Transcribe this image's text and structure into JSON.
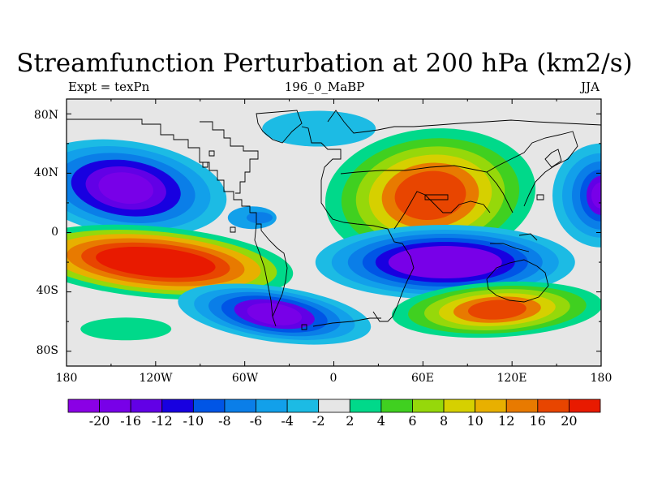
{
  "title": "Streamfunction Perturbation at 200 hPa (km2/s)",
  "left_label": "Expt = texPn",
  "center_label": "196_0_MaBP",
  "right_label": "JJA",
  "chart_data": {
    "type": "heatmap",
    "variable": "Streamfunction Perturbation at 200 hPa (km2/s)",
    "x_ticks": [
      "180",
      "120W",
      "60W",
      "0",
      "60E",
      "120E",
      "180"
    ],
    "y_ticks": [
      "80N",
      "40N",
      "0",
      "40S",
      "80S"
    ],
    "xlim": [
      -180,
      180
    ],
    "ylim": [
      -90,
      90
    ],
    "colorbar": {
      "colors": [
        "#8a00e5",
        "#7800e8",
        "#6200e6",
        "#1800e0",
        "#0055e6",
        "#0a7ee8",
        "#12a0ea",
        "#1cbbe4",
        "#e6e6e6",
        "#00d98a",
        "#40d020",
        "#96d80a",
        "#d6d000",
        "#e8b000",
        "#e87a00",
        "#e84500",
        "#e81a00"
      ],
      "labels": [
        "-20",
        "-16",
        "-12",
        "-10",
        "-8",
        "-6",
        "-4",
        "-2",
        "2",
        "4",
        "6",
        "8",
        "10",
        "12",
        "16",
        "20"
      ]
    },
    "features": [
      {
        "name": "NE Pacific / N America low",
        "sign": "negative",
        "center_lon": -140,
        "center_lat": 30,
        "peak": -20
      },
      {
        "name": "S Pacific high",
        "sign": "positive",
        "center_lon": -120,
        "center_lat": -20,
        "peak": 20
      },
      {
        "name": "Asian high",
        "sign": "positive",
        "center_lon": 65,
        "center_lat": 25,
        "peak": 20
      },
      {
        "name": "Indian Ocean low",
        "sign": "negative",
        "center_lon": 75,
        "center_lat": -20,
        "peak": -20
      },
      {
        "name": "S Atlantic low",
        "sign": "negative",
        "center_lon": -40,
        "center_lat": -55,
        "peak": -20
      },
      {
        "name": "S Indian Ocean high",
        "sign": "positive",
        "center_lon": 110,
        "center_lat": -52,
        "peak": 20
      },
      {
        "name": "W Pacific low",
        "sign": "negative",
        "center_lon": 180,
        "center_lat": 25,
        "peak": -20
      },
      {
        "name": "SE Pacific weak high",
        "sign": "positive",
        "center_lon": -140,
        "center_lat": -65,
        "peak": 4
      }
    ]
  }
}
